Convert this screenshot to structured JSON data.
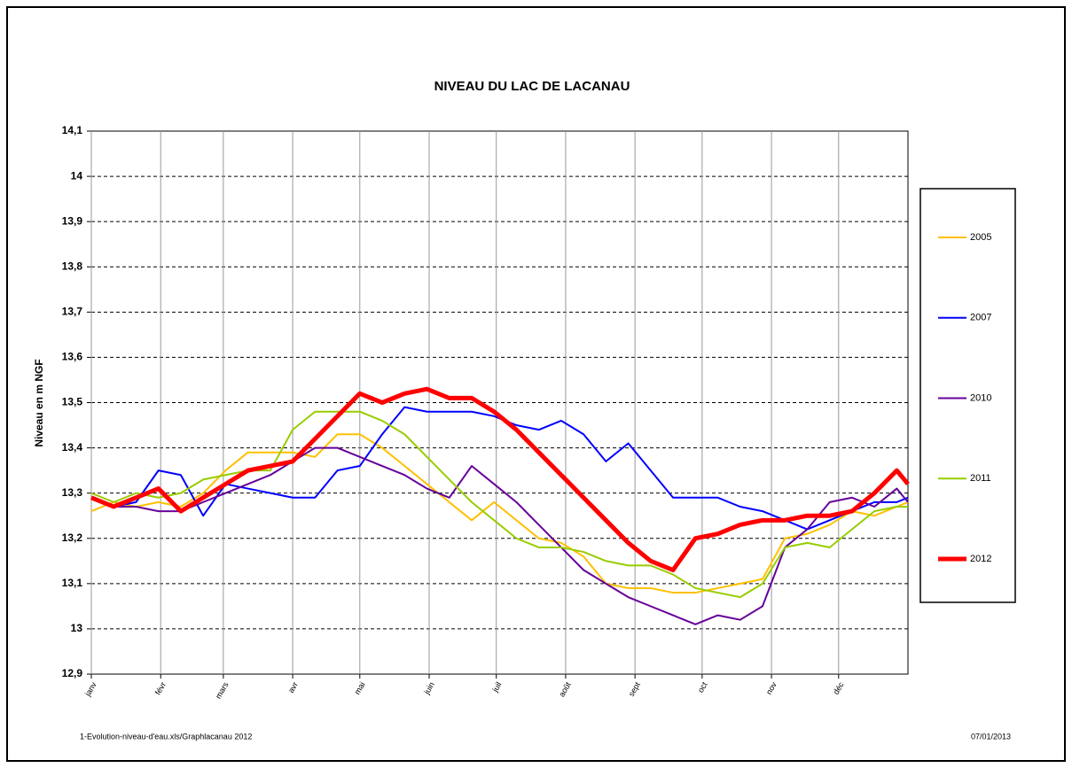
{
  "chart_data": {
    "type": "line",
    "title": "NIVEAU DU LAC DE LACANAU",
    "y_label": "Niveau en m NGF",
    "footer_left": "1-Evolution-niveau-d'eau.xls/Graphlacanau 2012",
    "footer_right": "07/01/2013",
    "x": [
      0,
      10,
      20,
      30,
      40,
      50,
      60,
      70,
      80,
      90,
      100,
      110,
      120,
      130,
      140,
      150,
      160,
      170,
      180,
      190,
      200,
      210,
      220,
      230,
      240,
      250,
      260,
      270,
      280,
      290,
      300,
      310,
      320,
      330,
      340,
      350,
      360,
      365
    ],
    "xlim": [
      0,
      365
    ],
    "xticks": [
      {
        "value": 0,
        "label": "janv"
      },
      {
        "value": 31,
        "label": "févr"
      },
      {
        "value": 59,
        "label": "mars"
      },
      {
        "value": 90,
        "label": "avr"
      },
      {
        "value": 120,
        "label": "mai"
      },
      {
        "value": 151,
        "label": "juin"
      },
      {
        "value": 181,
        "label": "juil"
      },
      {
        "value": 212,
        "label": "août"
      },
      {
        "value": 243,
        "label": "sept"
      },
      {
        "value": 273,
        "label": "oct"
      },
      {
        "value": 304,
        "label": "nov"
      },
      {
        "value": 334,
        "label": "déc"
      }
    ],
    "ylim": [
      12.9,
      14.1
    ],
    "yticks": [
      {
        "value": 12.9,
        "label": "12,9"
      },
      13,
      {
        "value": 13.1,
        "label": "13,1"
      },
      {
        "value": 13.2,
        "label": "13,2"
      },
      {
        "value": 13.3,
        "label": "13,3"
      },
      {
        "value": 13.4,
        "label": "13,4"
      },
      {
        "value": 13.5,
        "label": "13,5"
      },
      {
        "value": 13.6,
        "label": "13,6"
      },
      {
        "value": 13.7,
        "label": "13,7"
      },
      {
        "value": 13.8,
        "label": "13,8"
      },
      {
        "value": 13.9,
        "label": "13,9"
      },
      14,
      {
        "value": 14.1,
        "label": "14,1"
      }
    ],
    "grid": true,
    "legend": "right",
    "series": [
      {
        "name": "2005",
        "color": "#ffc000",
        "values": [
          13.26,
          13.28,
          13.27,
          13.28,
          13.27,
          13.3,
          13.35,
          13.39,
          13.39,
          13.39,
          13.38,
          13.43,
          13.43,
          13.4,
          13.36,
          13.32,
          13.28,
          13.24,
          13.28,
          13.24,
          13.2,
          13.19,
          13.16,
          13.1,
          13.09,
          13.09,
          13.08,
          13.08,
          13.09,
          13.1,
          13.11,
          13.2,
          13.21,
          13.23,
          13.26,
          13.25,
          13.27,
          13.28
        ]
      },
      {
        "name": "2007",
        "color": "#0000ff",
        "values": [
          13.29,
          13.27,
          13.28,
          13.35,
          13.34,
          13.25,
          13.32,
          13.31,
          13.3,
          13.29,
          13.29,
          13.35,
          13.36,
          13.43,
          13.49,
          13.48,
          13.48,
          13.48,
          13.47,
          13.45,
          13.44,
          13.46,
          13.43,
          13.37,
          13.41,
          13.35,
          13.29,
          13.29,
          13.29,
          13.27,
          13.26,
          13.24,
          13.22,
          13.24,
          13.26,
          13.28,
          13.28,
          13.29
        ]
      },
      {
        "name": "2010",
        "color": "#660099",
        "values": [
          13.29,
          13.27,
          13.27,
          13.26,
          13.26,
          13.28,
          13.3,
          13.32,
          13.34,
          13.37,
          13.4,
          13.4,
          13.38,
          13.36,
          13.34,
          13.31,
          13.29,
          13.36,
          13.32,
          13.28,
          13.23,
          13.18,
          13.13,
          13.1,
          13.07,
          13.05,
          13.03,
          13.01,
          13.03,
          13.02,
          13.05,
          13.18,
          13.22,
          13.28,
          13.29,
          13.27,
          13.31,
          13.28
        ]
      },
      {
        "name": "2011",
        "color": "#99cc00",
        "values": [
          13.3,
          13.28,
          13.3,
          13.29,
          13.3,
          13.33,
          13.34,
          13.35,
          13.35,
          13.44,
          13.48,
          13.48,
          13.48,
          13.46,
          13.43,
          13.38,
          13.33,
          13.28,
          13.24,
          13.2,
          13.18,
          13.18,
          13.17,
          13.15,
          13.14,
          13.14,
          13.12,
          13.09,
          13.08,
          13.07,
          13.1,
          13.18,
          13.19,
          13.18,
          13.22,
          13.26,
          13.27,
          13.27
        ]
      },
      {
        "name": "2012",
        "color": "#ff0000",
        "values": [
          13.29,
          13.27,
          13.29,
          13.31,
          13.26,
          13.29,
          13.32,
          13.35,
          13.36,
          13.37,
          13.42,
          13.47,
          13.52,
          13.5,
          13.52,
          13.53,
          13.51,
          13.51,
          13.48,
          13.44,
          13.39,
          13.34,
          13.29,
          13.24,
          13.19,
          13.15,
          13.13,
          13.2,
          13.21,
          13.23,
          13.24,
          13.24,
          13.25,
          13.25,
          13.26,
          13.3,
          13.35,
          13.32
        ]
      }
    ]
  }
}
